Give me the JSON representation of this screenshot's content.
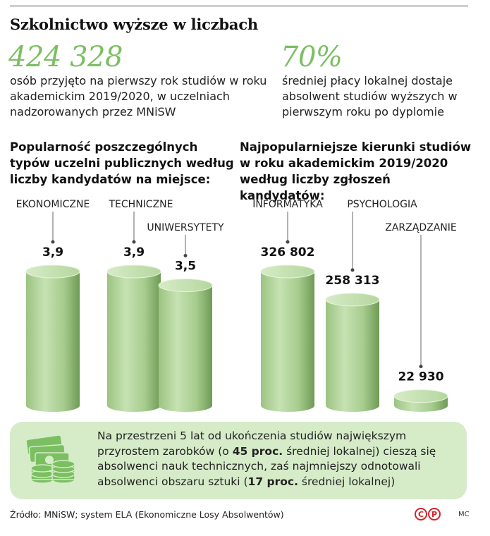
{
  "title": "Szkolnictwo wyższe w liczbach",
  "stat_left": {
    "value": "424 328",
    "description": "osób przyjęto na pierwszy rok studiów w roku akademickim 2019/2020, w uczelniach nadzorowanych przez MNiSW"
  },
  "stat_right": {
    "value": "70%",
    "description": "średniej płacy lokalnej dostaje absolwent studiów wyższych w pierwszym roku po dyplomie"
  },
  "section_left": {
    "heading": "Popularność poszczególnych typów uczelni publicznych według liczby kandydatów na miejsce:"
  },
  "section_right": {
    "heading": "Najpopularniejsze kierunki studiów w roku akademickim 2019/2020 według liczby zgłoszeń kandydatów:"
  },
  "colors": {
    "accent_green": "#7bbf62",
    "cylinder_light": "#cfe7bf",
    "cylinder_dark": "#6f9a55",
    "note_bg": "#d6ecc9",
    "logo_red": "#d3242a"
  },
  "chart_data": [
    {
      "type": "bar",
      "categories": [
        "EKONOMICZNE",
        "TECHNICZNE",
        "UNIWERSYTETY"
      ],
      "values": [
        3.9,
        3.9,
        3.5
      ],
      "value_labels": [
        "3,9",
        "3,9",
        "3,5"
      ],
      "ylim": [
        0,
        3.9
      ]
    },
    {
      "type": "bar",
      "categories": [
        "INFORMATYKA",
        "PSYCHOLOGIA",
        "ZARZĄDZANIE"
      ],
      "values": [
        326802,
        258313,
        22930
      ],
      "value_labels": [
        "326 802",
        "258 313",
        "22 930"
      ],
      "ylim": [
        0,
        326802
      ]
    }
  ],
  "note": {
    "part1": "Na przestrzeni 5 lat od ukończenia studiów największym przyrostem zarobków (o ",
    "bold1": "45 proc.",
    "part2": " średniej lokalnej) cieszą się absolwenci nauk technicznych, zaś najmniejszy odnotowali absolwenci obszaru sztuki (",
    "bold2": "17 proc.",
    "part3": " średniej lokalnej)"
  },
  "source": "Źródło: MNiSW; system ELA (Ekonomiczne Losy Absolwentów)",
  "logo_letters": [
    "C",
    "P"
  ],
  "author": "MC"
}
